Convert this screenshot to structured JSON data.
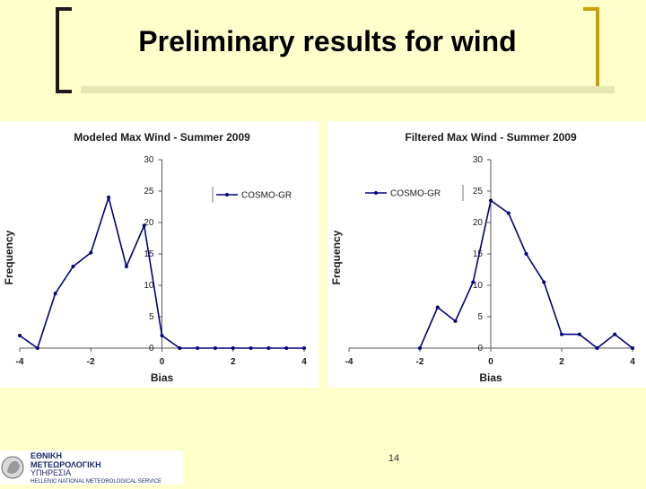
{
  "slide": {
    "title": "Preliminary results for wind",
    "page_number": "14"
  },
  "logo": {
    "line1": "ΕΘΝΙΚΗ",
    "line2": "ΜΕΤΕΩΡΟΛΟΓΙΚΗ",
    "line3": "ΥΠΗΡΕΣΙΑ",
    "line4": "HELLENIC NATIONAL METEOROLOGICAL SERVICE"
  },
  "colors": {
    "background": "#ffffcc",
    "series": "#000080",
    "accent_bracket": "#c8a000"
  },
  "chart_data": [
    {
      "type": "line",
      "title": "Modeled Max Wind - Summer 2009",
      "xlabel": "Bias",
      "ylabel": "Frequency",
      "xlim": [
        -4,
        4
      ],
      "ylim": [
        0,
        30
      ],
      "xticks": [
        -4,
        -2,
        0,
        2,
        4
      ],
      "yticks": [
        0,
        5,
        10,
        15,
        20,
        25,
        30
      ],
      "legend_position": "top-right",
      "grid": false,
      "series": [
        {
          "name": "COSMO-GR",
          "x": [
            -4,
            -3.5,
            -3,
            -2.5,
            -2,
            -1.5,
            -1,
            -0.5,
            0,
            0.5,
            1,
            1.5,
            2,
            2.5,
            3,
            3.5,
            4
          ],
          "y": [
            2,
            0,
            8.7,
            13,
            15.2,
            24,
            13,
            19.5,
            2,
            0,
            0,
            0,
            0,
            0,
            0,
            0,
            0
          ]
        }
      ]
    },
    {
      "type": "line",
      "title": "Filtered Max Wind - Summer 2009",
      "xlabel": "Bias",
      "ylabel": "Frequency",
      "xlim": [
        -4,
        4
      ],
      "ylim": [
        0,
        30
      ],
      "xticks": [
        -4,
        -2,
        0,
        2,
        4
      ],
      "yticks": [
        0,
        5,
        10,
        15,
        20,
        25,
        30
      ],
      "legend_position": "top-left",
      "grid": false,
      "series": [
        {
          "name": "COSMO-GR",
          "x": [
            -2,
            -1.5,
            -1,
            -0.5,
            0,
            0.5,
            1,
            1.5,
            2,
            2.5,
            3,
            3.5,
            4
          ],
          "y": [
            0,
            6.5,
            4.3,
            10.5,
            23.5,
            21.5,
            15,
            10.5,
            2.2,
            2.2,
            0,
            2.2,
            0
          ]
        }
      ]
    }
  ]
}
